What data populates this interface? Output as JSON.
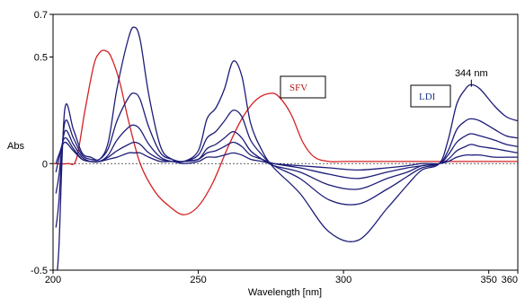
{
  "chart_data": {
    "type": "line",
    "xlabel": "Wavelength [nm]",
    "ylabel": "Abs",
    "xlim": [
      200,
      360
    ],
    "ylim": [
      -0.5,
      0.7
    ],
    "x_ticks": [
      "200",
      "250",
      "300",
      "350",
      "360"
    ],
    "y_ticks": [
      "0.7",
      "0.5",
      "0",
      "-0.5"
    ],
    "x_tick_values": [
      200,
      250,
      300,
      350,
      360
    ],
    "y_tick_values": [
      0.7,
      0.5,
      0,
      -0.5
    ],
    "grid": false,
    "zero_line": true,
    "annotations": [
      {
        "text": "344 nm",
        "x": 344,
        "y": 0.36
      }
    ],
    "legend_boxes": [
      "SFV",
      "LDI"
    ],
    "colors": {
      "sfv": "#d42020",
      "ldi": "#1c1c78",
      "baseline": "#333333"
    },
    "series": [
      {
        "name": "SFV",
        "color": "#d42020",
        "x": [
          200,
          205,
          208,
          211,
          214,
          216,
          218,
          220,
          223,
          226,
          230,
          235,
          240,
          245,
          250,
          255,
          260,
          265,
          270,
          275,
          278,
          282,
          286,
          290,
          295,
          300,
          310,
          320,
          330,
          340,
          350,
          360
        ],
        "y": [
          0.0,
          0.0,
          0.02,
          0.25,
          0.46,
          0.52,
          0.53,
          0.5,
          0.38,
          0.2,
          0.0,
          -0.13,
          -0.2,
          -0.24,
          -0.2,
          -0.09,
          0.07,
          0.21,
          0.3,
          0.33,
          0.31,
          0.23,
          0.1,
          0.03,
          0.01,
          0.01,
          0.01,
          0.01,
          0.01,
          0.01,
          0.01,
          0.01
        ]
      },
      {
        "name": "",
        "color": "#1c1c78",
        "x": [
          201,
          202,
          204,
          207,
          210,
          213,
          216,
          219,
          222,
          226,
          228,
          230,
          233,
          237,
          241,
          245,
          250,
          253,
          256,
          259,
          262,
          265,
          268,
          272,
          276,
          285,
          295,
          305,
          315,
          322,
          327,
          333,
          336,
          339,
          342,
          344,
          347,
          352,
          356,
          360
        ],
        "y": [
          -0.55,
          -0.4,
          0.25,
          0.16,
          0.05,
          0.03,
          0.02,
          0.1,
          0.35,
          0.59,
          0.64,
          0.58,
          0.32,
          0.08,
          0.02,
          0.01,
          0.06,
          0.21,
          0.26,
          0.35,
          0.48,
          0.41,
          0.19,
          0.06,
          -0.02,
          -0.14,
          -0.32,
          -0.36,
          -0.21,
          -0.1,
          -0.03,
          0.0,
          0.11,
          0.28,
          0.35,
          0.37,
          0.35,
          0.27,
          0.22,
          0.2
        ]
      },
      {
        "name": "",
        "color": "#1c1c78",
        "x": [
          201,
          202,
          204,
          207,
          210,
          213,
          216,
          219,
          222,
          226,
          228,
          230,
          233,
          237,
          241,
          245,
          250,
          253,
          256,
          259,
          262,
          265,
          268,
          272,
          276,
          285,
          295,
          305,
          315,
          322,
          327,
          333,
          336,
          339,
          342,
          344,
          347,
          352,
          356,
          360
        ],
        "y": [
          -0.3,
          -0.18,
          0.19,
          0.12,
          0.04,
          0.02,
          0.02,
          0.07,
          0.2,
          0.31,
          0.33,
          0.3,
          0.17,
          0.05,
          0.02,
          0.01,
          0.04,
          0.12,
          0.15,
          0.2,
          0.25,
          0.22,
          0.11,
          0.04,
          -0.01,
          -0.07,
          -0.17,
          -0.19,
          -0.12,
          -0.06,
          -0.02,
          0.0,
          0.06,
          0.16,
          0.2,
          0.21,
          0.2,
          0.16,
          0.13,
          0.12
        ]
      },
      {
        "name": "",
        "color": "#1c1c78",
        "x": [
          201,
          202,
          204,
          207,
          210,
          213,
          216,
          219,
          222,
          226,
          228,
          230,
          233,
          237,
          241,
          245,
          250,
          253,
          256,
          259,
          262,
          265,
          268,
          272,
          276,
          285,
          295,
          305,
          315,
          322,
          327,
          333,
          336,
          339,
          342,
          344,
          347,
          352,
          356,
          360
        ],
        "y": [
          -0.14,
          -0.06,
          0.15,
          0.09,
          0.03,
          0.01,
          0.01,
          0.04,
          0.11,
          0.17,
          0.18,
          0.16,
          0.09,
          0.03,
          0.01,
          0.01,
          0.02,
          0.07,
          0.09,
          0.12,
          0.15,
          0.12,
          0.06,
          0.02,
          -0.01,
          -0.04,
          -0.1,
          -0.12,
          -0.07,
          -0.04,
          -0.01,
          0.0,
          0.04,
          0.1,
          0.13,
          0.14,
          0.13,
          0.11,
          0.09,
          0.08
        ]
      },
      {
        "name": "",
        "color": "#1c1c78",
        "x": [
          201,
          202,
          204,
          207,
          210,
          213,
          216,
          219,
          222,
          226,
          228,
          230,
          233,
          237,
          241,
          245,
          250,
          253,
          256,
          259,
          262,
          265,
          268,
          272,
          276,
          285,
          295,
          305,
          315,
          322,
          327,
          333,
          336,
          339,
          342,
          344,
          347,
          352,
          356,
          360
        ],
        "y": [
          -0.04,
          0.02,
          0.12,
          0.07,
          0.02,
          0.01,
          0.01,
          0.03,
          0.06,
          0.09,
          0.1,
          0.09,
          0.05,
          0.02,
          0.01,
          0.01,
          0.02,
          0.05,
          0.06,
          0.08,
          0.1,
          0.08,
          0.04,
          0.02,
          0.0,
          -0.02,
          -0.05,
          -0.07,
          -0.04,
          -0.02,
          -0.01,
          0.0,
          0.02,
          0.06,
          0.08,
          0.09,
          0.08,
          0.07,
          0.06,
          0.05
        ]
      },
      {
        "name": "",
        "color": "#1c1c78",
        "x": [
          201,
          202,
          204,
          207,
          210,
          213,
          216,
          219,
          222,
          226,
          228,
          230,
          233,
          237,
          241,
          245,
          250,
          253,
          256,
          259,
          262,
          265,
          268,
          272,
          276,
          285,
          295,
          305,
          315,
          322,
          327,
          333,
          336,
          339,
          342,
          344,
          347,
          352,
          356,
          360
        ],
        "y": [
          0.0,
          0.04,
          0.1,
          0.06,
          0.02,
          0.01,
          0.01,
          0.02,
          0.03,
          0.05,
          0.05,
          0.05,
          0.03,
          0.01,
          0.01,
          0.0,
          0.01,
          0.03,
          0.03,
          0.04,
          0.05,
          0.04,
          0.02,
          0.01,
          0.0,
          -0.01,
          -0.02,
          -0.03,
          -0.02,
          -0.01,
          0.0,
          0.0,
          0.01,
          0.03,
          0.04,
          0.04,
          0.04,
          0.03,
          0.03,
          0.03
        ]
      }
    ]
  }
}
